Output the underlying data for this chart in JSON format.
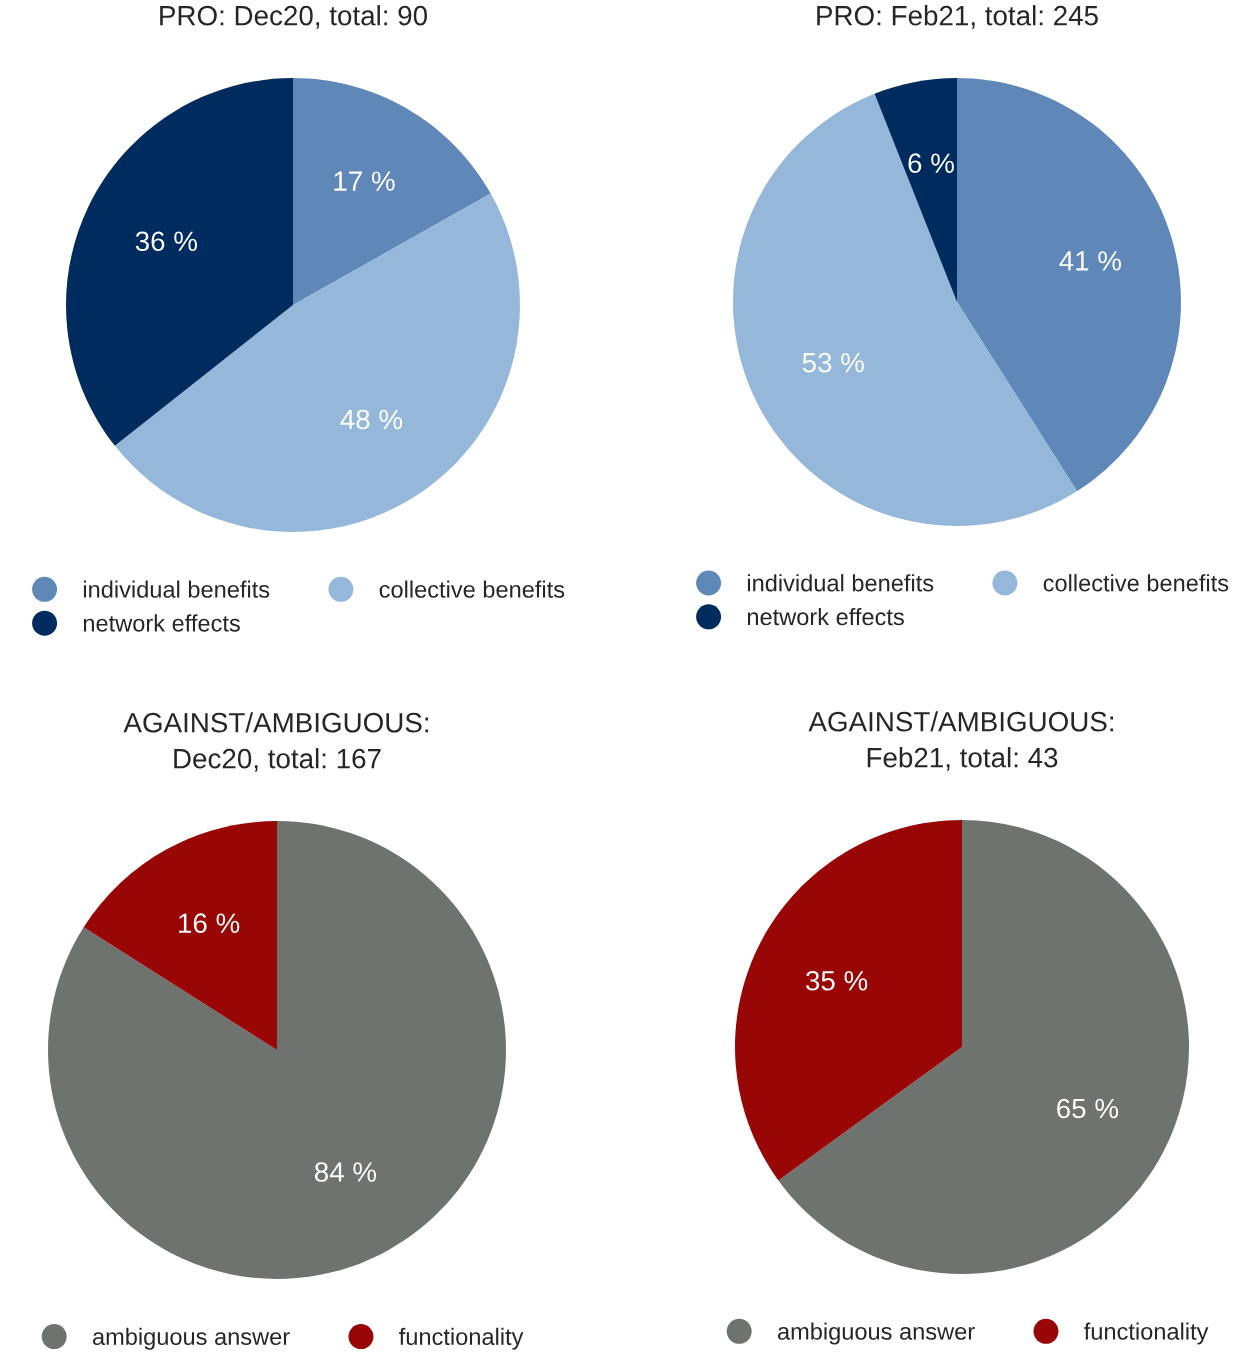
{
  "chart_data": [
    {
      "type": "pie",
      "title": "PRO: Dec20, total: 90",
      "categories": [
        "individual benefits",
        "collective benefits",
        "network effects"
      ],
      "values": [
        17,
        48,
        36
      ],
      "colors": [
        "#5f87b8",
        "#95b8da",
        "#002b5e"
      ],
      "value_labels": [
        "17 %",
        "48 %",
        "36 %"
      ],
      "legend": "bottom"
    },
    {
      "type": "pie",
      "title": "PRO: Feb21, total: 245",
      "categories": [
        "individual benefits",
        "collective benefits",
        "network effects"
      ],
      "values": [
        41,
        53,
        6
      ],
      "colors": [
        "#5f87b8",
        "#95b8da",
        "#002b5e"
      ],
      "value_labels": [
        "41 %",
        "53 %",
        "6 %"
      ],
      "legend": "bottom"
    },
    {
      "type": "pie",
      "title": "AGAINST/AMBIGUOUS:\nDec20, total: 167",
      "categories": [
        "ambiguous answer",
        "functionality"
      ],
      "values": [
        84,
        16
      ],
      "colors": [
        "#6e7370",
        "#990606"
      ],
      "value_labels": [
        "84 %",
        "16 %"
      ],
      "legend": "bottom"
    },
    {
      "type": "pie",
      "title": "AGAINST/AMBIGUOUS:\nFeb21, total: 43",
      "categories": [
        "ambiguous answer",
        "functionality"
      ],
      "values": [
        65,
        35
      ],
      "colors": [
        "#6e7370",
        "#990606"
      ],
      "value_labels": [
        "65 %",
        "35 %"
      ],
      "legend": "bottom"
    }
  ]
}
